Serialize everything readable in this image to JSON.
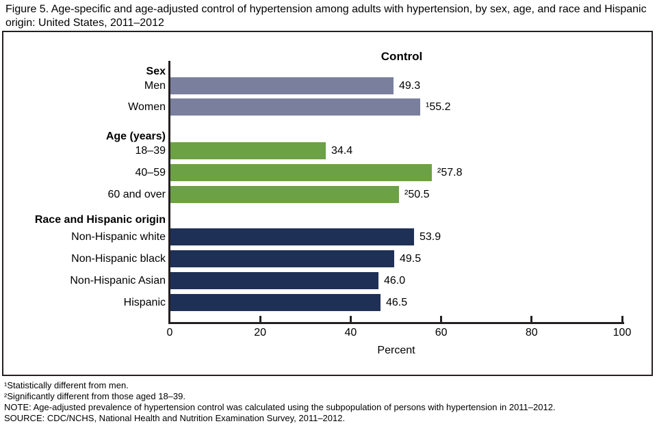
{
  "title": "Figure 5. Age-specific and age-adjusted control of hypertension among adults with hypertension, by sex, age, and race and Hispanic origin: United States, 2011–2012",
  "chart_data": {
    "type": "bar",
    "orientation": "horizontal",
    "series_header": "Control",
    "xlabel": "Percent",
    "xlim": [
      0,
      100
    ],
    "x_ticks": [
      "0",
      "20",
      "40",
      "60",
      "80",
      "100"
    ],
    "grid": false,
    "groups": [
      {
        "header": "Sex",
        "color": "#7a7f9e",
        "bars": [
          {
            "label": "Men",
            "value": 49.3,
            "display": "49.3"
          },
          {
            "label": "Women",
            "value": 55.2,
            "display": "¹55.2"
          }
        ]
      },
      {
        "header": "Age (years)",
        "color": "#6ca145",
        "bars": [
          {
            "label": "18–39",
            "value": 34.4,
            "display": "34.4"
          },
          {
            "label": "40–59",
            "value": 57.8,
            "display": "²57.8"
          },
          {
            "label": "60 and over",
            "value": 50.5,
            "display": "²50.5"
          }
        ]
      },
      {
        "header": "Race and Hispanic origin",
        "color": "#1f3056",
        "bars": [
          {
            "label": "Non-Hispanic white",
            "value": 53.9,
            "display": "53.9"
          },
          {
            "label": "Non-Hispanic black",
            "value": 49.5,
            "display": "49.5"
          },
          {
            "label": "Non-Hispanic Asian",
            "value": 46.0,
            "display": "46.0"
          },
          {
            "label": "Hispanic",
            "value": 46.5,
            "display": "46.5"
          }
        ]
      }
    ]
  },
  "footnotes": [
    "¹Statistically different from men.",
    "²Significantly different from those aged 18–39.",
    "NOTE: Age-adjusted prevalence of hypertension control was calculated using the subpopulation of persons with hypertension in 2011–2012.",
    "SOURCE: CDC/NCHS, National Health and Nutrition Examination Survey, 2011–2012."
  ]
}
